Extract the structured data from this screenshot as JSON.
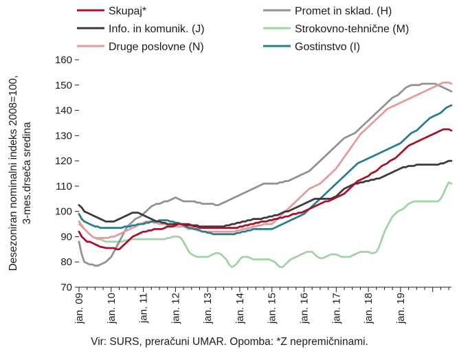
{
  "chart_data": {
    "type": "line",
    "title": "",
    "ylabel_lines": [
      "Desezoniran nominalni indeks 2008=100,",
      "3-mes.drseča sredina"
    ],
    "xlabel": "",
    "ylim": [
      70,
      160
    ],
    "yticks": [
      70,
      80,
      90,
      100,
      110,
      120,
      130,
      140,
      150,
      160
    ],
    "x_start": "jan. 09",
    "x_end": "dec. 19",
    "x_tick_labels": [
      "jan. 09",
      "jan. 10",
      "jan. 11",
      "jan. 12",
      "jan. 13",
      "jan. 14",
      "jan. 15",
      "jan. 16",
      "jan. 17",
      "jan. 18",
      "jan. 19"
    ],
    "grid": false,
    "legend_position": "top",
    "series": [
      {
        "name": "Skupaj*",
        "color": "#a5122a",
        "values": [
          92,
          90,
          89,
          88,
          88,
          87.5,
          87,
          86.5,
          86,
          85.8,
          85.5,
          85.5,
          85.5,
          85.5,
          85,
          85,
          86,
          87,
          88,
          89,
          90,
          90.5,
          91,
          91.5,
          92,
          92,
          92.5,
          92.5,
          93,
          93,
          93,
          93,
          93.5,
          94,
          94,
          94,
          94.5,
          95,
          95,
          95,
          94.5,
          94.5,
          94.5,
          94,
          94,
          93.5,
          93.5,
          93.5,
          93.5,
          93.5,
          93.5,
          93.5,
          93.5,
          93.5,
          93.5,
          93.5,
          93.5,
          93.5,
          93.5,
          93.5,
          94,
          94,
          94.5,
          94.5,
          95,
          95,
          95.5,
          95.5,
          96,
          96,
          96,
          96.5,
          96.5,
          97,
          97,
          97.5,
          97.5,
          98,
          98,
          98.5,
          99,
          99,
          99.5,
          99.5,
          100,
          100.5,
          101,
          101.5,
          102,
          102.5,
          103,
          103.5,
          104,
          104,
          104.5,
          105,
          105.5,
          106,
          106.5,
          107,
          108,
          109,
          110,
          111,
          112,
          112.5,
          113,
          113.5,
          114,
          115,
          115.5,
          116,
          117,
          118,
          118.5,
          119,
          120,
          120.5,
          121,
          122,
          123,
          124,
          125,
          126,
          126.5,
          127,
          127.5,
          128,
          128.5,
          129,
          129.5,
          130,
          130.5,
          131,
          131.5,
          132,
          132.5,
          132.5,
          132.5,
          132
        ]
      },
      {
        "name": "Promet in sklad. (H)",
        "color": "#929292",
        "values": [
          88,
          83,
          80,
          79.5,
          79,
          79,
          78.5,
          78.5,
          79,
          79.5,
          80,
          81,
          82,
          84,
          86,
          88,
          90,
          92,
          94,
          95,
          96,
          97,
          97.5,
          98,
          99,
          100,
          101,
          102,
          102.5,
          103,
          103,
          103.5,
          104,
          104,
          104.5,
          105,
          105.5,
          105,
          104.5,
          104,
          104,
          104,
          104,
          104,
          103.5,
          103.5,
          103,
          103,
          103,
          103,
          103,
          102.5,
          102.5,
          103,
          103.5,
          104,
          104.5,
          105,
          105.5,
          106,
          106.5,
          107,
          107.5,
          108,
          108.5,
          109,
          109.5,
          110,
          110.5,
          111,
          111,
          111,
          111,
          111,
          111,
          111.5,
          111.5,
          112,
          112,
          112.5,
          113,
          113.5,
          114,
          114.5,
          115,
          115.5,
          116,
          117,
          118,
          119,
          120,
          121,
          122,
          123,
          124,
          125,
          126,
          127,
          128,
          129,
          129.5,
          130,
          130.5,
          131,
          132,
          133,
          134,
          135,
          136,
          137,
          138,
          139,
          140,
          141,
          142,
          143,
          144,
          145,
          145.5,
          146,
          147,
          148,
          149,
          149.5,
          150,
          150,
          150,
          150,
          150.5,
          150.5,
          150.5,
          150.5,
          150.5,
          150.5,
          150,
          149.5,
          149,
          148.5,
          148,
          147.5
        ]
      },
      {
        "name": "Info. in komunik. (J)",
        "color": "#3a3a3a",
        "values": [
          102.5,
          101.5,
          100,
          99.5,
          99,
          98.5,
          98,
          97.5,
          97,
          96.5,
          96,
          96,
          96,
          96,
          96.5,
          97,
          97.5,
          98,
          98.5,
          99,
          99.5,
          99.5,
          99.5,
          99,
          98.5,
          98,
          97.5,
          97,
          96.5,
          96,
          96,
          95.5,
          95.5,
          95,
          95,
          95,
          95,
          95,
          95,
          95,
          95,
          95,
          94.5,
          94.5,
          94.5,
          94,
          94,
          94,
          94,
          94,
          94,
          94,
          94,
          94,
          94,
          94.5,
          94.5,
          95,
          95,
          95.5,
          95.5,
          96,
          96,
          96.5,
          96.5,
          97,
          97,
          97,
          97,
          97.5,
          97.5,
          98,
          98,
          98.5,
          98.5,
          99,
          99.5,
          100,
          100,
          100.5,
          101,
          101.5,
          102,
          102.5,
          103,
          103.5,
          104,
          104.5,
          105,
          105,
          105,
          105,
          105,
          105,
          105,
          105.5,
          106,
          107,
          108,
          109,
          109.5,
          110,
          110.5,
          111,
          111,
          111.5,
          111.5,
          112,
          112,
          112.5,
          112.5,
          113,
          113,
          113.5,
          114,
          114.5,
          115,
          115.5,
          116,
          116.5,
          117,
          117.5,
          117.5,
          118,
          118,
          118,
          118.5,
          118.5,
          118.5,
          118.5,
          118.5,
          118.5,
          118.5,
          118.5,
          118.5,
          119,
          119,
          119.5,
          120,
          120
        ]
      },
      {
        "name": "Strokovno-tehnične (M)",
        "color": "#a3d2a3",
        "values": [
          95,
          94,
          93,
          92,
          91,
          90,
          89.5,
          89,
          89,
          88.5,
          88,
          88,
          88,
          88,
          88,
          88,
          88,
          88.5,
          88.5,
          89,
          89,
          89,
          89,
          89,
          89,
          89,
          89,
          89,
          89,
          89,
          89,
          89,
          89,
          89.5,
          89.5,
          90,
          90,
          90,
          89.5,
          88,
          86,
          84,
          83,
          82.5,
          82,
          82,
          82,
          82,
          82,
          82.5,
          83,
          83.5,
          83.5,
          83,
          82,
          81,
          79,
          78,
          78.5,
          79.5,
          81,
          82,
          82,
          82,
          81.5,
          81,
          81,
          81,
          81,
          81,
          81,
          81,
          80.5,
          80,
          79,
          78,
          78,
          79,
          80,
          81,
          81.5,
          82,
          82.5,
          83,
          83.5,
          84,
          84,
          84,
          83,
          82,
          81.5,
          81.5,
          82,
          82.5,
          83,
          83,
          83,
          82.5,
          82,
          82,
          82,
          82,
          82.5,
          83,
          83.5,
          84,
          84,
          84,
          84,
          83.5,
          83.5,
          84,
          86,
          89,
          92,
          94,
          96,
          98,
          99,
          100,
          100.5,
          101,
          102,
          103,
          103.5,
          104,
          104,
          104,
          104,
          104,
          104,
          104,
          104,
          104,
          104,
          105,
          107,
          109.5,
          111.5,
          111
        ]
      },
      {
        "name": "Druge poslovne (N)",
        "color": "#e69a9a",
        "values": [
          96,
          94.5,
          93,
          92,
          91,
          90,
          89.5,
          89.5,
          89.5,
          89.5,
          89.5,
          89.5,
          90,
          90,
          90.5,
          91,
          91.5,
          92,
          92.5,
          93,
          93.5,
          94,
          94.5,
          95,
          95.5,
          96,
          96,
          96,
          95.5,
          95.5,
          95,
          95,
          95,
          94.5,
          94.5,
          94.5,
          94,
          94,
          94,
          94,
          93.5,
          93,
          93,
          93,
          92.5,
          92.5,
          92,
          92,
          92,
          92,
          92,
          92,
          92,
          92,
          92,
          92,
          92,
          92,
          92,
          92.5,
          92.5,
          93,
          93,
          93.5,
          93.5,
          94,
          94,
          94.5,
          94.5,
          95,
          95,
          95,
          95,
          96,
          97,
          98,
          99,
          100,
          101,
          102,
          103,
          104,
          105,
          106,
          107,
          108,
          109,
          109.5,
          110,
          110.5,
          111,
          112,
          113,
          114,
          115,
          116,
          117,
          118.5,
          120,
          121.5,
          123,
          124.5,
          126,
          127.5,
          129,
          130.5,
          131.5,
          132.5,
          133.5,
          134.5,
          135.5,
          136.5,
          137.5,
          138.5,
          139.5,
          140.5,
          141,
          141.5,
          142,
          142.5,
          143,
          143.5,
          144,
          144.5,
          145,
          145.5,
          146,
          146.5,
          147,
          147.5,
          148,
          148.5,
          149,
          149.5,
          150,
          150.5,
          151,
          151,
          151,
          150.5
        ]
      },
      {
        "name": "Gostinstvo (I)",
        "color": "#2a7d8c",
        "values": [
          99,
          97,
          96,
          95.5,
          95,
          94.5,
          94,
          94,
          93.5,
          93.5,
          93.5,
          93.5,
          93.5,
          93.5,
          93.5,
          93.5,
          93.5,
          94,
          94,
          94,
          94.5,
          94.5,
          95,
          95,
          95,
          95.5,
          95.5,
          96,
          96,
          96,
          96.5,
          96.5,
          96.5,
          96.5,
          96,
          96,
          95.5,
          95.5,
          95,
          94.5,
          94,
          93.5,
          93.5,
          93,
          93,
          92.5,
          92,
          92,
          91.5,
          91.5,
          91,
          91,
          91,
          91,
          91,
          91,
          91,
          91,
          91,
          91.5,
          91.5,
          92,
          92,
          92.5,
          92.5,
          93,
          93,
          93,
          93,
          93,
          93,
          93,
          93,
          93.5,
          94,
          94.5,
          95,
          95.5,
          96,
          96.5,
          97,
          97.5,
          98,
          98.5,
          99,
          100,
          101,
          102,
          103,
          104,
          105,
          106,
          107,
          108,
          109,
          110,
          111,
          112,
          113,
          114,
          115,
          116,
          117,
          118,
          119,
          119.5,
          120,
          120.5,
          121,
          121.5,
          122,
          122.5,
          123,
          123.5,
          124,
          124.5,
          125,
          125.5,
          126,
          126.5,
          127,
          128,
          129,
          130,
          131,
          131.5,
          132,
          133,
          134,
          135,
          136,
          137,
          137.5,
          138,
          138.5,
          139,
          140,
          141,
          141.5,
          142
        ]
      }
    ]
  },
  "source_note": "Vir: SURS, preračuni UMAR. Opomba: *Z nepremičninami."
}
